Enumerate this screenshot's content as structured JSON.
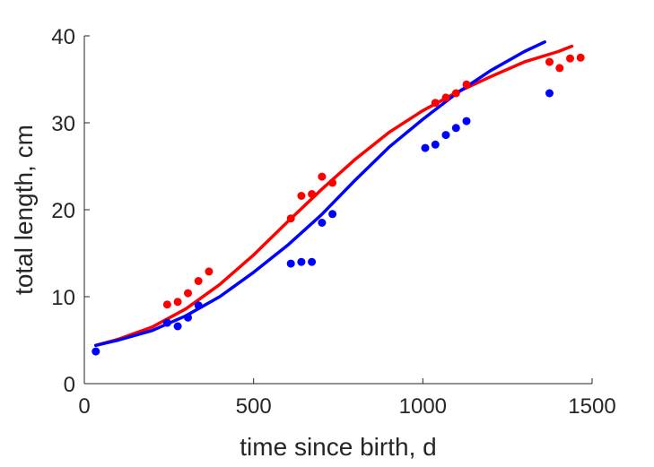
{
  "chart_data": {
    "type": "scatter",
    "xlabel": "time since birth, d",
    "ylabel": "total length, cm",
    "xlim": [
      0,
      1500
    ],
    "ylim": [
      0,
      40
    ],
    "x_ticks": [
      0,
      500,
      1000,
      1500
    ],
    "y_ticks": [
      0,
      10,
      20,
      30,
      40
    ],
    "grid": false,
    "legend": "none",
    "series": [
      {
        "color": "#ff0000",
        "kind": "points",
        "points": [
          [
            245,
            9.1
          ],
          [
            276,
            9.4
          ],
          [
            306,
            10.4
          ],
          [
            337,
            11.8
          ],
          [
            368,
            12.9
          ],
          [
            610,
            19.0
          ],
          [
            641,
            21.6
          ],
          [
            672,
            21.8
          ],
          [
            702,
            23.8
          ],
          [
            733,
            23.1
          ],
          [
            1037,
            32.3
          ],
          [
            1068,
            32.9
          ],
          [
            1098,
            33.4
          ],
          [
            1129,
            34.4
          ],
          [
            1374,
            37.0
          ],
          [
            1404,
            36.3
          ],
          [
            1435,
            37.4
          ],
          [
            1466,
            37.5
          ]
        ]
      },
      {
        "color": "#0000ff",
        "kind": "points",
        "points": [
          [
            34,
            3.7
          ],
          [
            245,
            7.0
          ],
          [
            276,
            6.6
          ],
          [
            306,
            7.6
          ],
          [
            337,
            9.0
          ],
          [
            610,
            13.8
          ],
          [
            641,
            14.0
          ],
          [
            672,
            14.0
          ],
          [
            702,
            18.5
          ],
          [
            733,
            19.5
          ],
          [
            1007,
            27.1
          ],
          [
            1037,
            27.5
          ],
          [
            1068,
            28.6
          ],
          [
            1098,
            29.4
          ],
          [
            1129,
            30.2
          ],
          [
            1374,
            33.4
          ]
        ]
      },
      {
        "color": "#ff0000",
        "kind": "line",
        "points": [
          [
            34,
            4.4
          ],
          [
            100,
            5.1
          ],
          [
            200,
            6.5
          ],
          [
            300,
            8.6
          ],
          [
            400,
            11.4
          ],
          [
            500,
            14.8
          ],
          [
            600,
            18.6
          ],
          [
            700,
            22.3
          ],
          [
            800,
            25.8
          ],
          [
            900,
            28.9
          ],
          [
            1000,
            31.4
          ],
          [
            1100,
            33.5
          ],
          [
            1200,
            35.3
          ],
          [
            1300,
            37.0
          ],
          [
            1400,
            38.2
          ],
          [
            1440,
            38.8
          ]
        ]
      },
      {
        "color": "#0000ff",
        "kind": "line",
        "points": [
          [
            34,
            4.4
          ],
          [
            100,
            5.0
          ],
          [
            200,
            6.1
          ],
          [
            300,
            7.8
          ],
          [
            400,
            10.0
          ],
          [
            500,
            12.8
          ],
          [
            600,
            15.9
          ],
          [
            700,
            19.4
          ],
          [
            800,
            23.4
          ],
          [
            900,
            27.2
          ],
          [
            1000,
            30.4
          ],
          [
            1100,
            33.4
          ],
          [
            1200,
            36.0
          ],
          [
            1300,
            38.2
          ],
          [
            1360,
            39.3
          ]
        ]
      }
    ]
  }
}
